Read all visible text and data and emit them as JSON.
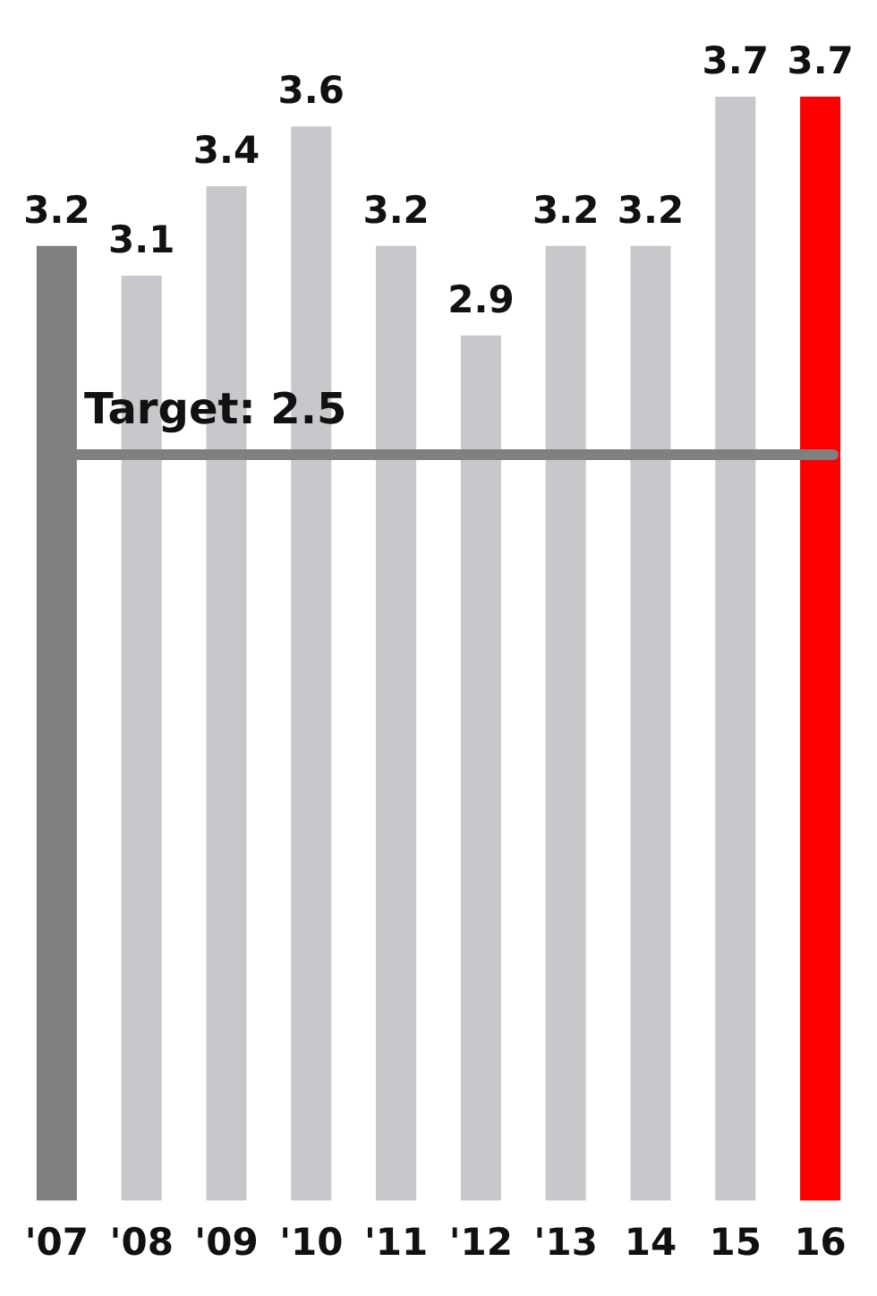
{
  "chart_data": {
    "type": "bar",
    "categories": [
      "'07",
      "'08",
      "'09",
      "'10",
      "'11",
      "'12",
      "'13",
      "14",
      "15",
      "16"
    ],
    "values": [
      3.2,
      3.1,
      3.4,
      3.6,
      3.2,
      2.9,
      3.2,
      3.2,
      3.7,
      3.7
    ],
    "colors": [
      "#7f7f7f",
      "#c8c8cc",
      "#c8c8cc",
      "#c8c8cc",
      "#c8c8cc",
      "#c8c8cc",
      "#c8c8cc",
      "#c8c8cc",
      "#c8c8cc",
      "#ff0000"
    ],
    "tick_labels": "x",
    "grid": false,
    "legend": false,
    "data_labels": true,
    "ref_lines": [
      {
        "axis": "y",
        "value": 2.5,
        "label": "Target: 2.5",
        "color": "#808080"
      }
    ]
  }
}
